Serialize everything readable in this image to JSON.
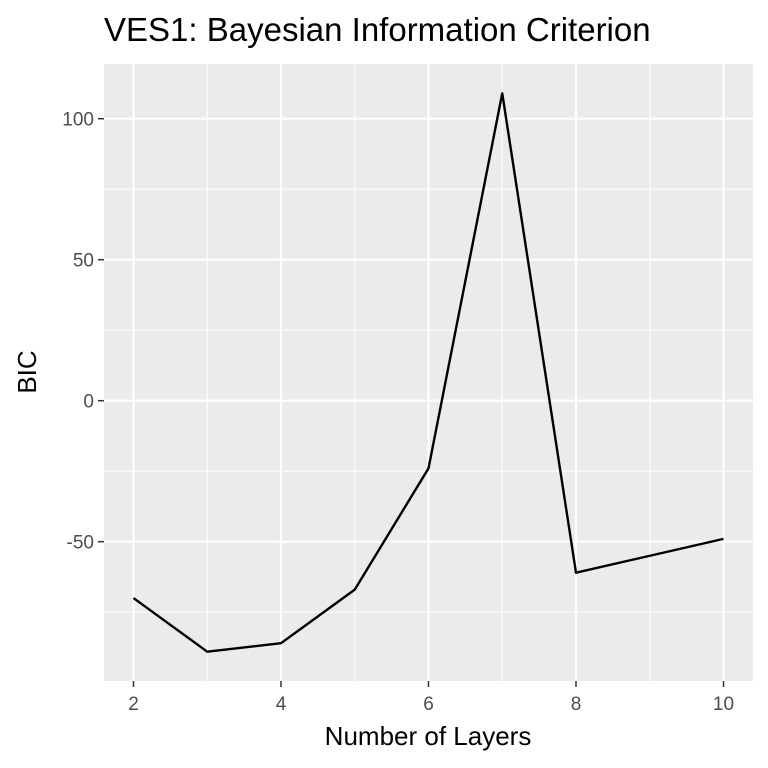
{
  "chart_data": {
    "type": "line",
    "title": "VES1: Bayesian Information Criterion",
    "xlabel": "Number of Layers",
    "ylabel": "BIC",
    "x": [
      2,
      3,
      4,
      5,
      6,
      7,
      8,
      10
    ],
    "series": [
      {
        "values": [
          -70,
          -89,
          -86,
          -67,
          -24,
          109,
          -61,
          -49
        ]
      }
    ],
    "xlim": [
      1.6,
      10.4
    ],
    "ylim": [
      -99.4,
      119.4
    ],
    "x_ticks": [
      2,
      4,
      6,
      8,
      10
    ],
    "x_tick_labels": [
      "2",
      "4",
      "6",
      "8",
      "10"
    ],
    "y_ticks": [
      -50,
      0,
      50,
      100
    ],
    "y_tick_labels": [
      "-50",
      "0",
      "50",
      "100"
    ],
    "grid": true,
    "legend": "none",
    "colors": {
      "panel_background": "#ebebeb",
      "grid": "#ffffff",
      "line": "#000000",
      "tick_text": "#4d4d4d",
      "tick_mark": "#333333"
    }
  }
}
